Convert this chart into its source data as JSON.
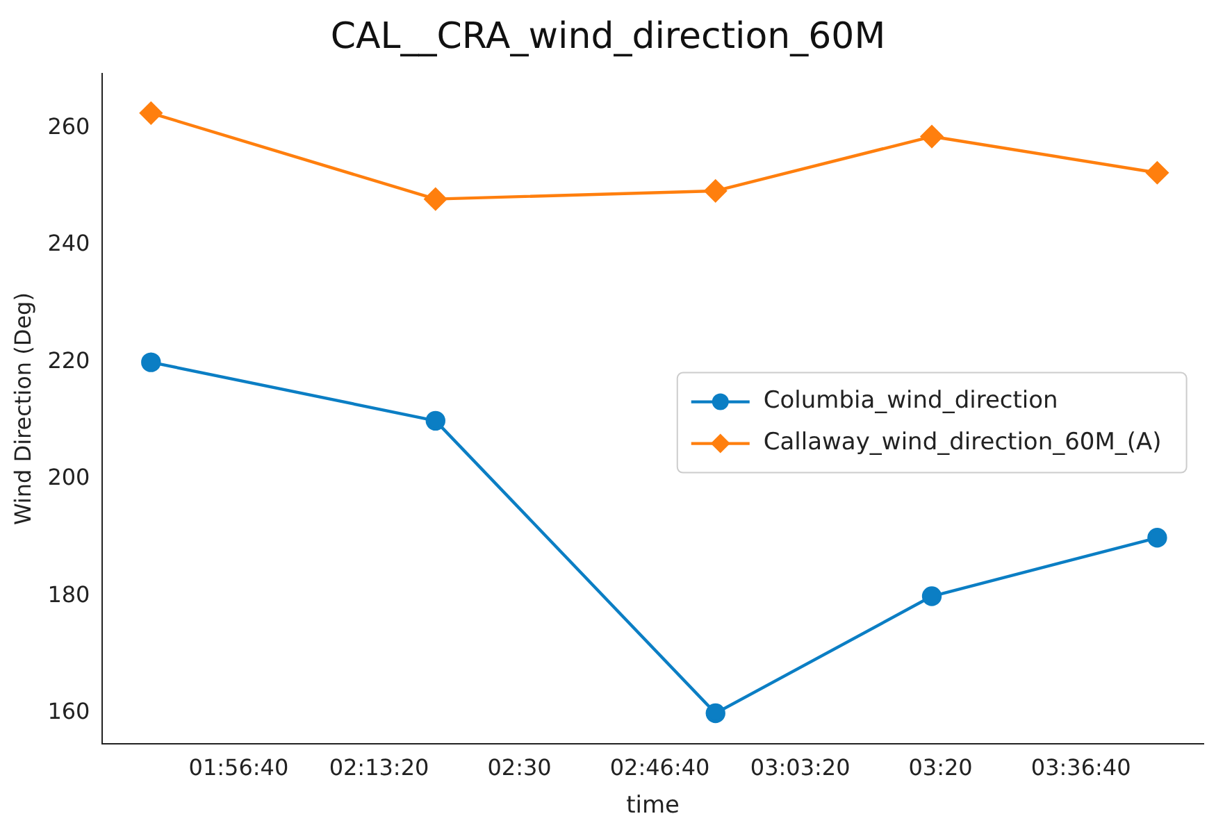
{
  "chart_data": {
    "type": "line",
    "title": "CAL__CRA_wind_direction_60M",
    "xlabel": "time",
    "ylabel": "Wind Direction (Deg)",
    "x": [
      1.771,
      2.334,
      2.888,
      3.316,
      3.762
    ],
    "xlim": [
      1.675,
      3.853
    ],
    "xticks": [
      {
        "value": 1.9444,
        "label": "01:56:40"
      },
      {
        "value": 2.2222,
        "label": "02:13:20"
      },
      {
        "value": 2.5,
        "label": "02:30"
      },
      {
        "value": 2.7778,
        "label": "02:46:40"
      },
      {
        "value": 3.0556,
        "label": "03:03:20"
      },
      {
        "value": 3.3333,
        "label": "03:20"
      },
      {
        "value": 3.6111,
        "label": "03:36:40"
      }
    ],
    "ylim": [
      154.8,
      269.3
    ],
    "yticks": [
      160,
      180,
      200,
      220,
      240,
      260
    ],
    "series": [
      {
        "name": "Columbia_wind_direction",
        "color": "#0b7ec4",
        "marker": "circle",
        "values": [
          220,
          210,
          160,
          180,
          190
        ]
      },
      {
        "name": "Callaway_wind_direction_60M_(A)",
        "color": "#ff7f0e",
        "marker": "diamond",
        "values": [
          262.6,
          247.9,
          249.3,
          258.6,
          252.4
        ]
      }
    ],
    "grid": false,
    "legend": "right",
    "line_style": "solid"
  }
}
